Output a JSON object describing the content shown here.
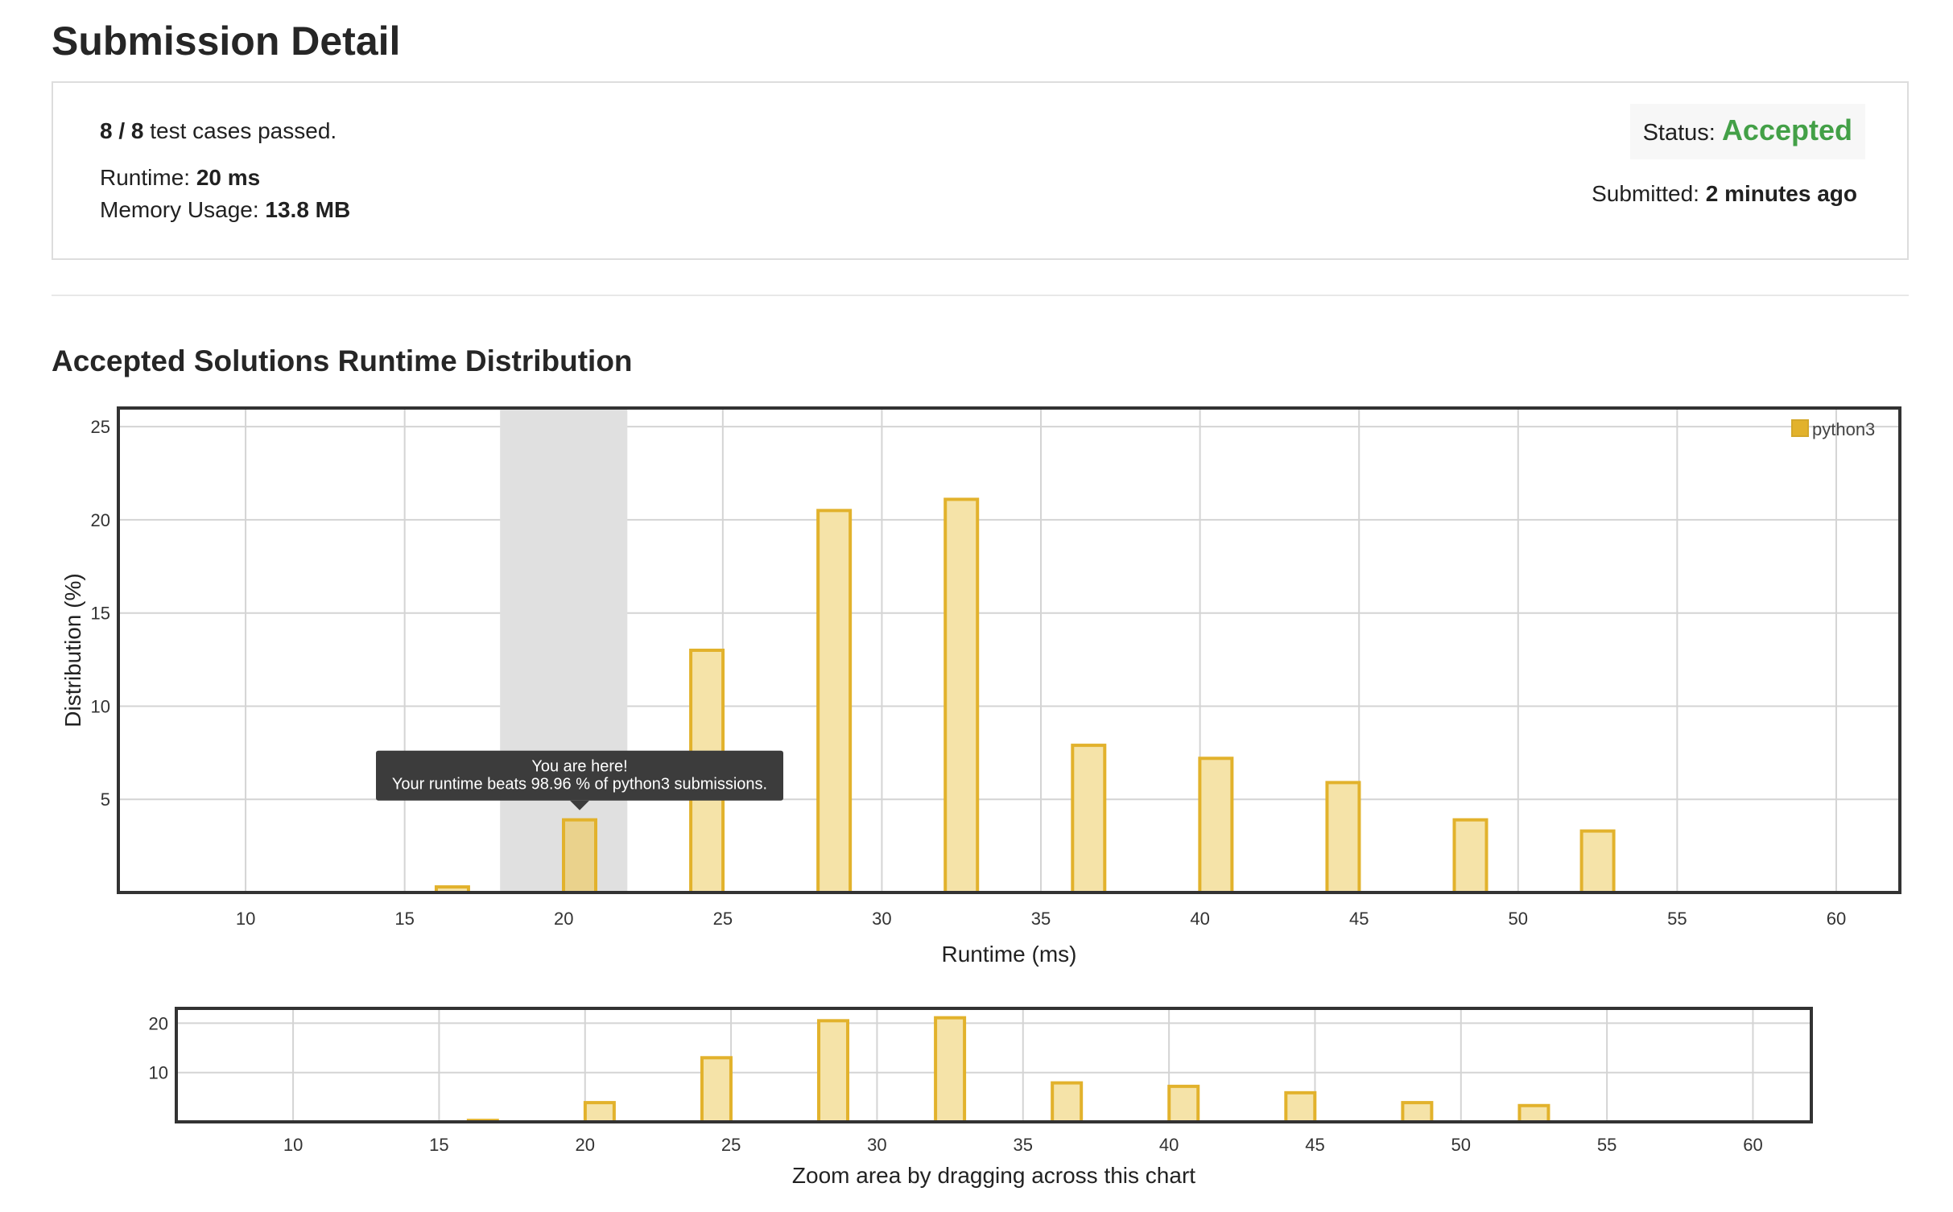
{
  "page": {
    "title": "Submission Detail"
  },
  "summary": {
    "tests_passed": "8 / 8",
    "tests_suffix": "test cases passed.",
    "runtime_label": "Runtime:",
    "runtime_value": "20 ms",
    "memory_label": "Memory Usage:",
    "memory_value": "13.8 MB",
    "status_label": "Status:",
    "status_value": "Accepted",
    "submitted_label": "Submitted:",
    "submitted_value": "2 minutes ago"
  },
  "section": {
    "title": "Accepted Solutions Runtime Distribution"
  },
  "colors": {
    "bar_fill": "#f5e3a8",
    "bar_stroke": "#e2b22c",
    "status_accepted": "#43a047",
    "highlight_band": "#e0e0e0",
    "tooltip_bg": "#3c3c3c"
  },
  "chart_data": {
    "type": "bar",
    "title": "",
    "xlabel": "Runtime (ms)",
    "ylabel": "Distribution (%)",
    "xlim": [
      6,
      62
    ],
    "ylim": [
      0,
      26
    ],
    "x_ticks": [
      10,
      15,
      20,
      25,
      30,
      35,
      40,
      45,
      50,
      55,
      60
    ],
    "y_ticks": [
      5,
      10,
      15,
      20,
      25
    ],
    "grid": true,
    "legend": {
      "position": "top-right",
      "entries": [
        "python3"
      ]
    },
    "series": [
      {
        "name": "python3",
        "x": [
          16.5,
          20.5,
          24.5,
          28.5,
          32.5,
          36.5,
          40.5,
          44.5,
          48.5,
          52.5
        ],
        "values": [
          0.3,
          3.9,
          13.0,
          20.5,
          21.1,
          7.9,
          7.2,
          5.9,
          3.9,
          3.3
        ]
      }
    ],
    "highlight": {
      "x_range": [
        18,
        22
      ]
    },
    "tooltip": {
      "line1": "You are here!",
      "line2": "Your runtime beats 98.96 % of python3 submissions."
    },
    "overview": {
      "xlim": [
        6,
        62
      ],
      "ylim": [
        0,
        23
      ],
      "x_ticks": [
        10,
        15,
        20,
        25,
        30,
        35,
        40,
        45,
        50,
        55,
        60
      ],
      "y_ticks": [
        10,
        20
      ],
      "xlabel": "Zoom area by dragging across this chart"
    }
  }
}
